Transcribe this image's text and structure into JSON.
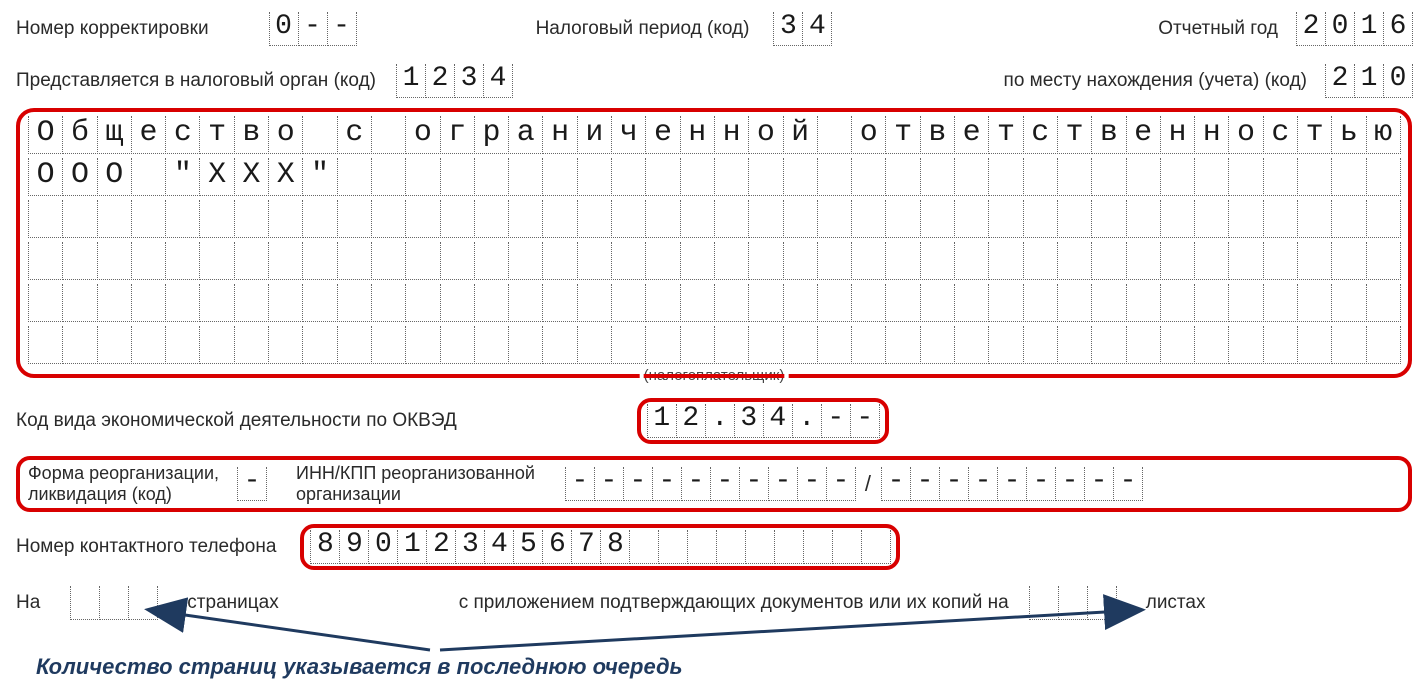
{
  "colors": {
    "highlight_border": "#d80000",
    "text": "#1a1a1a",
    "label": "#2a2a2a",
    "footnote": "#1f3a5f",
    "arrow": "#1f3a5f",
    "cell_border": "#666666",
    "background": "#ffffff"
  },
  "row1": {
    "correction_label": "Номер корректировки",
    "correction_value": [
      "0",
      "-",
      "-"
    ],
    "period_label": "Налоговый период",
    "code_suffix": "(код)",
    "period_value": [
      "3",
      "4"
    ],
    "year_label": "Отчетный год",
    "year_value": [
      "2",
      "0",
      "1",
      "6"
    ]
  },
  "row2": {
    "authority_label": "Представляется в налоговый орган",
    "code_suffix": "(код)",
    "authority_value": [
      "1",
      "2",
      "3",
      "4"
    ],
    "location_label": "по месту нахождения (учета)",
    "location_value": [
      "2",
      "1",
      "0"
    ]
  },
  "name_block": {
    "cells_per_row": 40,
    "rows": [
      "Общество с ограниченной ответственностью",
      "ООО \"ХХХ\"",
      "",
      "",
      "",
      ""
    ],
    "covered_caption": "(налогоплательщик)"
  },
  "row_okved": {
    "label": "Код вида экономической деятельности по ОКВЭД",
    "value": [
      "1",
      "2",
      ".",
      "3",
      "4",
      ".",
      "-",
      "-"
    ]
  },
  "row_reorg": {
    "form_label_line1": "Форма реорганизации,",
    "form_label_line2": "ликвидация",
    "code_suffix": "(код)",
    "form_value": [
      "-"
    ],
    "inn_label_line1": "ИНН/КПП реорганизованной",
    "inn_label_line2": "организации",
    "inn_value": [
      "-",
      "-",
      "-",
      "-",
      "-",
      "-",
      "-",
      "-",
      "-",
      "-"
    ],
    "sep": "/",
    "kpp_value": [
      "-",
      "-",
      "-",
      "-",
      "-",
      "-",
      "-",
      "-",
      "-"
    ]
  },
  "row_phone": {
    "label": "Номер контактного телефона",
    "value": [
      "8",
      "9",
      "0",
      "1",
      "2",
      "3",
      "4",
      "5",
      "6",
      "7",
      "8",
      "",
      "",
      "",
      "",
      "",
      "",
      "",
      "",
      ""
    ]
  },
  "row_pages": {
    "na": "На",
    "pages_value": [
      "",
      "",
      ""
    ],
    "pages_word": "страницах",
    "attach_label": "с приложением подтверждающих документов или их копий на",
    "sheets_value": [
      "",
      "",
      ""
    ],
    "sheets_word": "листах"
  },
  "footnote": "Количество страниц указывается в последнюю очередь"
}
